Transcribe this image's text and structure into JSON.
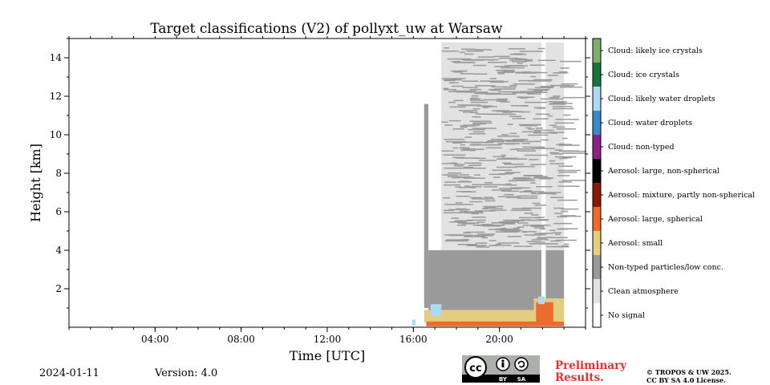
{
  "chart_data": {
    "type": "heatmap",
    "title": "Target classifications (V2) of pollyxt_uw at Warsaw",
    "xlabel": "Time [UTC]",
    "ylabel": "Height [km]",
    "xlim_hours": [
      0,
      24
    ],
    "ylim_km": [
      0,
      15
    ],
    "x_ticks": [
      {
        "hour": 4,
        "label": "04:00"
      },
      {
        "hour": 8,
        "label": "08:00"
      },
      {
        "hour": 12,
        "label": "12:00"
      },
      {
        "hour": 16,
        "label": "16:00"
      },
      {
        "hour": 20,
        "label": "20:00"
      }
    ],
    "y_ticks": [
      {
        "km": 2,
        "label": "2"
      },
      {
        "km": 4,
        "label": "4"
      },
      {
        "km": 6,
        "label": "6"
      },
      {
        "km": 8,
        "label": "8"
      },
      {
        "km": 10,
        "label": "10"
      },
      {
        "km": 12,
        "label": "12"
      },
      {
        "km": 14,
        "label": "14"
      }
    ],
    "legend_position": "right",
    "classes": [
      {
        "name": "Cloud: likely ice crystals",
        "color": "#7fb069"
      },
      {
        "name": "Cloud: ice crystals",
        "color": "#18733c"
      },
      {
        "name": "Cloud: likely water droplets",
        "color": "#aed9f4"
      },
      {
        "name": "Cloud: water droplets",
        "color": "#3a88c8"
      },
      {
        "name": "Cloud: non-typed",
        "color": "#8a2387"
      },
      {
        "name": "Aerosol: large, non-spherical",
        "color": "#000000"
      },
      {
        "name": "Aerosol: mixture, partly non-spherical",
        "color": "#8b1a00"
      },
      {
        "name": "Aerosol: large, spherical",
        "color": "#ec6b2d"
      },
      {
        "name": "Aerosol: small",
        "color": "#e2cd80"
      },
      {
        "name": "Non-typed particles/low conc.",
        "color": "#9a9a9a"
      },
      {
        "name": "Clean atmosphere",
        "color": "#e2e2e2"
      },
      {
        "name": "No signal",
        "color": "#ffffff"
      }
    ],
    "regions": [
      {
        "class": "Clean atmosphere",
        "t_start": 17.3,
        "t_end": 21.95,
        "h_bottom": 4.0,
        "h_top": 14.8
      },
      {
        "class": "Clean atmosphere",
        "t_start": 22.15,
        "t_end": 23.0,
        "h_bottom": 4.0,
        "h_top": 14.8
      },
      {
        "class": "Non-typed particles/low conc.",
        "t_start": 16.7,
        "t_end": 21.95,
        "h_bottom": 0.7,
        "h_top": 4.0
      },
      {
        "class": "Non-typed particles/low conc.",
        "t_start": 22.15,
        "t_end": 23.0,
        "h_bottom": 1.2,
        "h_top": 4.0
      },
      {
        "class": "Aerosol: small",
        "t_start": 16.5,
        "t_end": 21.95,
        "h_bottom": 0.25,
        "h_top": 0.9
      },
      {
        "class": "Aerosol: small",
        "t_start": 21.6,
        "t_end": 23.0,
        "h_bottom": 0.3,
        "h_top": 1.5
      },
      {
        "class": "Aerosol: large, spherical",
        "t_start": 16.6,
        "t_end": 23.0,
        "h_bottom": 0.05,
        "h_top": 0.3
      },
      {
        "class": "Aerosol: large, spherical",
        "t_start": 21.7,
        "t_end": 22.5,
        "h_bottom": 0.2,
        "h_top": 1.3
      },
      {
        "class": "Cloud: likely water droplets",
        "t_start": 16.8,
        "t_end": 17.3,
        "h_bottom": 0.6,
        "h_top": 1.2
      },
      {
        "class": "Cloud: likely water droplets",
        "t_start": 21.8,
        "t_end": 22.1,
        "h_bottom": 1.2,
        "h_top": 1.6
      },
      {
        "class": "Cloud: likely water droplets",
        "t_start": 15.95,
        "t_end": 16.1,
        "h_bottom": 0.1,
        "h_top": 0.4
      },
      {
        "class": "Non-typed particles/low conc.",
        "t_start": 16.5,
        "t_end": 16.7,
        "h_bottom": 1.0,
        "h_top": 11.6
      }
    ],
    "footer": {
      "date": "2024-01-11",
      "version": "Version: 4.0"
    }
  },
  "license": {
    "badge_text": "cc",
    "badge_by": "BY",
    "badge_sa": "SA",
    "preliminary": "Preliminary Results.",
    "preliminary_line1": "Preliminary",
    "preliminary_line2": "Results.",
    "copyright_line1": "© TROPOS & UW 2025.",
    "copyright_line2": "CC BY SA 4.0 License."
  }
}
